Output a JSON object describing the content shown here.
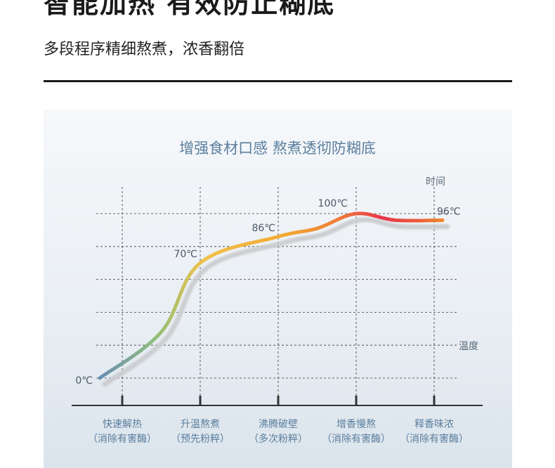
{
  "header": {
    "headline": "智能加热 有效防止糊底",
    "subtitle": "多段程序精细熬煮，浓香翻倍"
  },
  "colors": {
    "accent_blue": "#5b7f9e",
    "curve_start": "#6b8db5",
    "curve_mid": "#f2b233",
    "curve_peak": "#e8364a",
    "curve_end": "#f08a2a",
    "shadow": "#c9cbcd"
  },
  "chart_data": {
    "type": "line",
    "title": "增强食材口感 熬煮透彻防糊底",
    "xlabel": "时间",
    "ylabel": "温度",
    "stages": [
      {
        "name": "快速解热",
        "note": "（消除有害酶）"
      },
      {
        "name": "升温熬煮",
        "note": "（预先粉粹）"
      },
      {
        "name": "沸腾破壁",
        "note": "（多次粉粹）"
      },
      {
        "name": "增香慢熬",
        "note": "（消除有害酶）"
      },
      {
        "name": "释香味浓",
        "note": "（消除有害酶）"
      }
    ],
    "ylim": [
      0,
      100
    ],
    "series": [
      {
        "points": [
          {
            "x": 0,
            "y": 0
          },
          {
            "x": 0.5,
            "y": 28
          },
          {
            "x": 1.0,
            "y": 70
          },
          {
            "x": 2.0,
            "y": 86
          },
          {
            "x": 2.5,
            "y": 91
          },
          {
            "x": 3.0,
            "y": 100
          },
          {
            "x": 3.5,
            "y": 96
          },
          {
            "x": 4.0,
            "y": 96
          }
        ]
      }
    ],
    "annotations": [
      {
        "x": 0,
        "y": 0,
        "text": "0℃"
      },
      {
        "x": 1.0,
        "y": 70,
        "text": "70℃"
      },
      {
        "x": 2.0,
        "y": 86,
        "text": "86℃"
      },
      {
        "x": 3.0,
        "y": 100,
        "text": "100℃"
      },
      {
        "x": 4.0,
        "y": 96,
        "text": "96℃"
      }
    ],
    "grid": true
  }
}
